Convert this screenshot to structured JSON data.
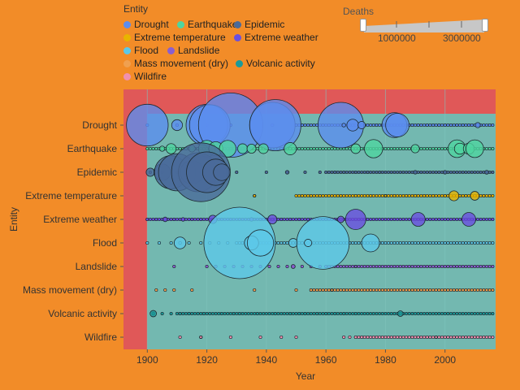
{
  "legend": {
    "title": "Entity",
    "items": [
      {
        "label": "Drought",
        "color": "#5b8def"
      },
      {
        "label": "Earthquake",
        "color": "#4fd4a0"
      },
      {
        "label": "Epidemic",
        "color": "#4a6a9a"
      },
      {
        "label": "Extreme temperature",
        "color": "#e8b400"
      },
      {
        "label": "Extreme weather",
        "color": "#6a4fe0"
      },
      {
        "label": "Flood",
        "color": "#5cc8e8"
      },
      {
        "label": "Landslide",
        "color": "#8a5fd0"
      },
      {
        "label": "Mass movement (dry)",
        "color": "#f0a050"
      },
      {
        "label": "Volcanic activity",
        "color": "#1a9a9a"
      },
      {
        "label": "Wildfire",
        "color": "#f090b0"
      }
    ]
  },
  "size_legend": {
    "title": "Deaths",
    "tick_labels": [
      "1000000",
      "3000000"
    ]
  },
  "chart_data": {
    "type": "scatter",
    "xlabel": "Year",
    "ylabel": "Entity",
    "xlim": [
      1892,
      2017
    ],
    "xticks": [
      1900,
      1920,
      1940,
      1960,
      1980,
      2000
    ],
    "categories": [
      "Drought",
      "Earthquake",
      "Epidemic",
      "Extreme temperature",
      "Extreme weather",
      "Flood",
      "Landslide",
      "Mass movement (dry)",
      "Volcanic activity",
      "Wildfire"
    ],
    "size_range": [
      0,
      3700000
    ],
    "series": [
      {
        "category": "Drought",
        "points": [
          [
            1900,
            1261000
          ],
          [
            1910,
            85000
          ],
          [
            1920,
            1250000
          ],
          [
            1921,
            1200000
          ],
          [
            1928,
            3000000
          ],
          [
            1942,
            1500000
          ],
          [
            1943,
            1900000
          ],
          [
            1965,
            1502000
          ],
          [
            1966,
            10000
          ],
          [
            1969,
            100000
          ],
          [
            1972,
            40000
          ],
          [
            1983,
            450000
          ],
          [
            1984,
            400000
          ],
          [
            2011,
            20000
          ]
        ]
      },
      {
        "category": "Earthquake",
        "points": [
          [
            1905,
            20000
          ],
          [
            1908,
            75000
          ],
          [
            1915,
            32000
          ],
          [
            1920,
            200000
          ],
          [
            1923,
            143000
          ],
          [
            1927,
            200000
          ],
          [
            1932,
            70000
          ],
          [
            1935,
            60000
          ],
          [
            1939,
            70000
          ],
          [
            1948,
            110000
          ],
          [
            1970,
            67000
          ],
          [
            1976,
            242000
          ],
          [
            1990,
            50000
          ],
          [
            2004,
            227000
          ],
          [
            2005,
            88000
          ],
          [
            2008,
            88000
          ],
          [
            2010,
            226000
          ]
        ]
      },
      {
        "category": "Epidemic",
        "points": [
          [
            1901,
            50000
          ],
          [
            1905,
            200000
          ],
          [
            1908,
            800000
          ],
          [
            1910,
            1000000
          ],
          [
            1915,
            400000
          ],
          [
            1917,
            1100000
          ],
          [
            1918,
            2500000
          ],
          [
            1920,
            1200000
          ],
          [
            1923,
            500000
          ],
          [
            1925,
            200000
          ],
          [
            1947,
            10000
          ],
          [
            1990,
            10000
          ],
          [
            2000,
            10000
          ],
          [
            2014,
            11000
          ]
        ]
      },
      {
        "category": "Extreme temperature",
        "points": [
          [
            1936,
            5000
          ],
          [
            1980,
            1500
          ],
          [
            2003,
            72000
          ],
          [
            2010,
            56000
          ]
        ]
      },
      {
        "category": "Extreme weather",
        "points": [
          [
            1906,
            15000
          ],
          [
            1912,
            10000
          ],
          [
            1922,
            50000
          ],
          [
            1935,
            10000
          ],
          [
            1942,
            60000
          ],
          [
            1965,
            30000
          ],
          [
            1970,
            300000
          ],
          [
            1991,
            139000
          ],
          [
            2008,
            138000
          ]
        ]
      },
      {
        "category": "Flood",
        "points": [
          [
            1911,
            100000
          ],
          [
            1931,
            3700000
          ],
          [
            1935,
            145000
          ],
          [
            1938,
            500000
          ],
          [
            1949,
            57000
          ],
          [
            1959,
            2000000
          ],
          [
            1954,
            40000
          ],
          [
            1975,
            230000
          ]
        ]
      },
      {
        "category": "Landslide",
        "points": [
          [
            1949,
            12000
          ],
          [
            1970,
            5000
          ]
        ]
      },
      {
        "category": "Mass movement (dry)",
        "points": [
          [
            1962,
            4000
          ]
        ]
      },
      {
        "category": "Volcanic activity",
        "points": [
          [
            1902,
            30000
          ],
          [
            1985,
            23000
          ]
        ]
      },
      {
        "category": "Wildfire",
        "points": [
          [
            1918,
            1000
          ],
          [
            1997,
            240
          ]
        ]
      }
    ]
  }
}
